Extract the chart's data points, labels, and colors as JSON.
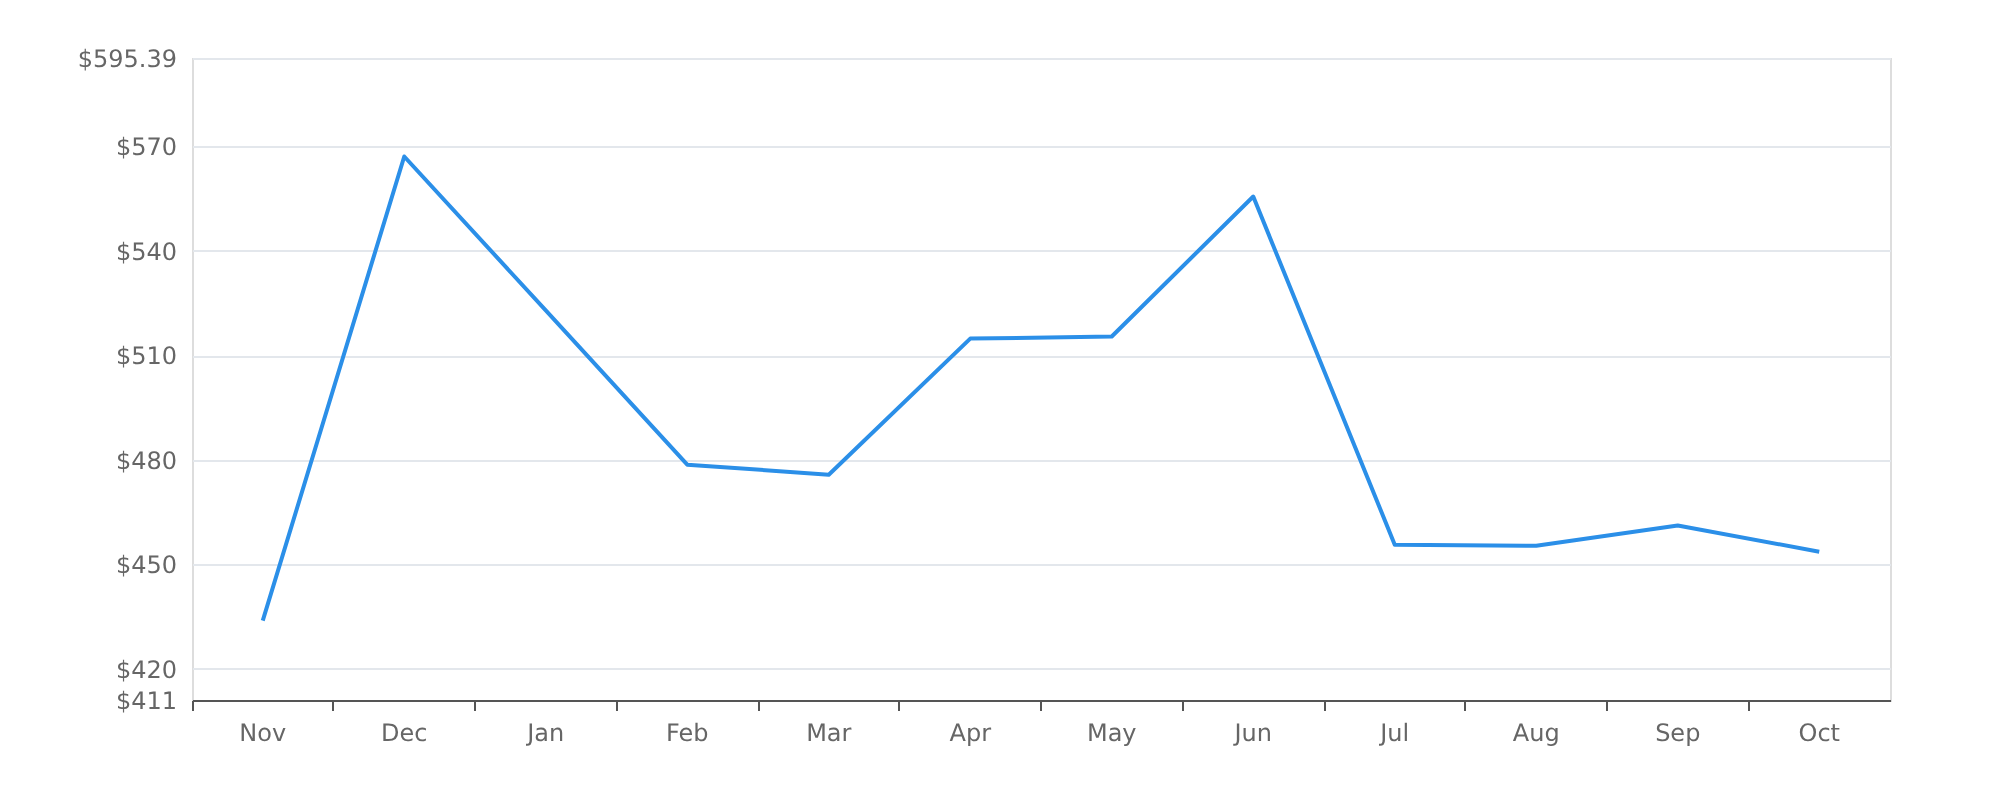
{
  "chart_data": {
    "type": "line",
    "categories": [
      "Nov",
      "Dec",
      "Jan",
      "Feb",
      "Mar",
      "Apr",
      "May",
      "Jun",
      "Jul",
      "Aug",
      "Sep",
      "Oct"
    ],
    "series": [
      {
        "color": "#2b8fe8",
        "values": [
          433.8,
          567.1,
          522.9,
          478.6,
          475.7,
          514.8,
          515.4,
          555.6,
          455.6,
          455.3,
          461.1,
          453.6
        ]
      }
    ],
    "ylim": [
      411,
      595.39
    ],
    "yticks": [
      {
        "value": 411,
        "label": "$411"
      },
      {
        "value": 420,
        "label": "$420"
      },
      {
        "value": 450,
        "label": "$450"
      },
      {
        "value": 480,
        "label": "$480"
      },
      {
        "value": 510,
        "label": "$510"
      },
      {
        "value": 540,
        "label": "$540"
      },
      {
        "value": 570,
        "label": "$570"
      },
      {
        "value": 595.39,
        "label": "$595.39"
      }
    ],
    "grid": "y",
    "marker": "none",
    "line_style": "solid"
  }
}
